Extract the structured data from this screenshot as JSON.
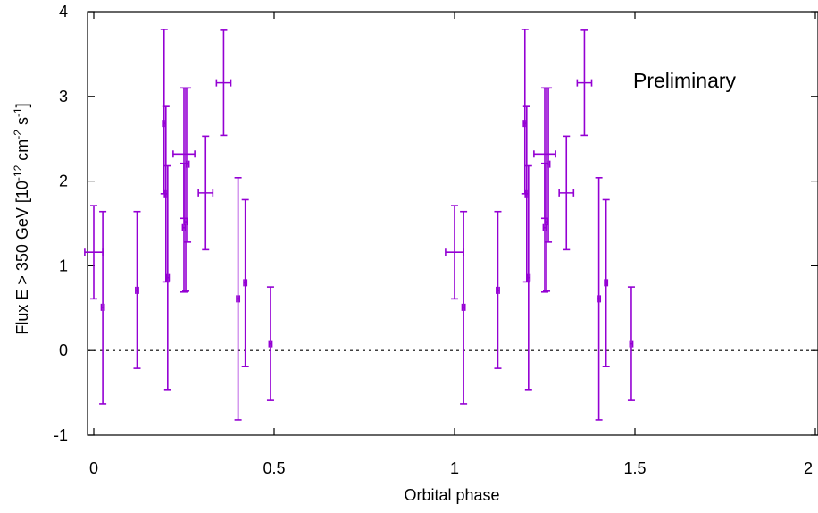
{
  "chart_data": {
    "type": "scatter",
    "title": "",
    "annotation": "Preliminary",
    "xlabel": "Orbital phase",
    "ylabel": {
      "prefix": "Flux E > 350 GeV [10",
      "exp1": "-12",
      "mid": " cm",
      "exp2": "-2",
      "mid2": " s",
      "exp3": "-1",
      "suffix": "]"
    },
    "xlim": [
      -0.02,
      2.0
    ],
    "ylim": [
      -1,
      4
    ],
    "xticks": [
      0,
      0.5,
      1,
      1.5,
      2
    ],
    "xtick_labels": [
      "0",
      "0.5",
      "1",
      "1.5",
      "2"
    ],
    "yticks": [
      -1,
      0,
      1,
      2,
      3,
      4
    ],
    "ytick_labels": [
      "-1",
      "0",
      "1",
      "2",
      "3",
      "4"
    ],
    "grid": false,
    "reference_line": {
      "y": 0,
      "style": "dotted"
    },
    "colors": {
      "points": "#9400d3",
      "axes": "#000000",
      "zero_line": "#000000"
    },
    "series": [
      {
        "points": [
          {
            "x": 0.0,
            "xerr": 0.025,
            "y": 1.16,
            "yerr_low": 0.55,
            "yerr_high": 0.55
          },
          {
            "x": 0.025,
            "xerr": 0.004,
            "y": 0.51,
            "yerr_low": 1.14,
            "yerr_high": 1.13
          },
          {
            "x": 0.12,
            "xerr": 0.004,
            "y": 0.71,
            "yerr_low": 0.92,
            "yerr_high": 0.93
          },
          {
            "x": 0.195,
            "xerr": 0.004,
            "y": 2.68,
            "yerr_low": 0.83,
            "yerr_high": 1.11
          },
          {
            "x": 0.2,
            "xerr": 0.004,
            "y": 1.85,
            "yerr_low": 1.04,
            "yerr_high": 1.03
          },
          {
            "x": 0.205,
            "xerr": 0.004,
            "y": 0.86,
            "yerr_low": 1.32,
            "yerr_high": 1.32
          },
          {
            "x": 0.25,
            "xerr": 0.03,
            "y": 2.32,
            "yerr_low": 0.76,
            "yerr_high": 0.78
          },
          {
            "x": 0.25,
            "xerr": 0.004,
            "y": 1.45,
            "yerr_low": 0.76,
            "yerr_high": 0.76
          },
          {
            "x": 0.255,
            "xerr": 0.004,
            "y": 1.52,
            "yerr_low": 0.82,
            "yerr_high": 1.58
          },
          {
            "x": 0.26,
            "xerr": 0.004,
            "y": 2.2,
            "yerr_low": 0.92,
            "yerr_high": 0.9
          },
          {
            "x": 0.31,
            "xerr": 0.02,
            "y": 1.86,
            "yerr_low": 0.67,
            "yerr_high": 0.67
          },
          {
            "x": 0.36,
            "xerr": 0.02,
            "y": 3.16,
            "yerr_low": 0.62,
            "yerr_high": 0.62
          },
          {
            "x": 0.4,
            "xerr": 0.004,
            "y": 0.61,
            "yerr_low": 1.43,
            "yerr_high": 1.43
          },
          {
            "x": 0.42,
            "xerr": 0.004,
            "y": 0.8,
            "yerr_low": 0.99,
            "yerr_high": 0.98
          },
          {
            "x": 0.49,
            "xerr": 0.004,
            "y": 0.08,
            "yerr_low": 0.67,
            "yerr_high": 0.67
          },
          {
            "x": 1.0,
            "xerr": 0.025,
            "y": 1.16,
            "yerr_low": 0.55,
            "yerr_high": 0.55
          },
          {
            "x": 1.025,
            "xerr": 0.004,
            "y": 0.51,
            "yerr_low": 1.14,
            "yerr_high": 1.13
          },
          {
            "x": 1.12,
            "xerr": 0.004,
            "y": 0.71,
            "yerr_low": 0.92,
            "yerr_high": 0.93
          },
          {
            "x": 1.195,
            "xerr": 0.004,
            "y": 2.68,
            "yerr_low": 0.83,
            "yerr_high": 1.11
          },
          {
            "x": 1.2,
            "xerr": 0.004,
            "y": 1.85,
            "yerr_low": 1.04,
            "yerr_high": 1.03
          },
          {
            "x": 1.205,
            "xerr": 0.004,
            "y": 0.86,
            "yerr_low": 1.32,
            "yerr_high": 1.32
          },
          {
            "x": 1.25,
            "xerr": 0.03,
            "y": 2.32,
            "yerr_low": 0.76,
            "yerr_high": 0.78
          },
          {
            "x": 1.25,
            "xerr": 0.004,
            "y": 1.45,
            "yerr_low": 0.76,
            "yerr_high": 0.76
          },
          {
            "x": 1.255,
            "xerr": 0.004,
            "y": 1.52,
            "yerr_low": 0.82,
            "yerr_high": 1.58
          },
          {
            "x": 1.26,
            "xerr": 0.004,
            "y": 2.2,
            "yerr_low": 0.92,
            "yerr_high": 0.9
          },
          {
            "x": 1.31,
            "xerr": 0.02,
            "y": 1.86,
            "yerr_low": 0.67,
            "yerr_high": 0.67
          },
          {
            "x": 1.36,
            "xerr": 0.02,
            "y": 3.16,
            "yerr_low": 0.62,
            "yerr_high": 0.62
          },
          {
            "x": 1.4,
            "xerr": 0.004,
            "y": 0.61,
            "yerr_low": 1.43,
            "yerr_high": 1.43
          },
          {
            "x": 1.42,
            "xerr": 0.004,
            "y": 0.8,
            "yerr_low": 0.99,
            "yerr_high": 0.98
          },
          {
            "x": 1.49,
            "xerr": 0.004,
            "y": 0.08,
            "yerr_low": 0.67,
            "yerr_high": 0.67
          }
        ]
      }
    ]
  }
}
